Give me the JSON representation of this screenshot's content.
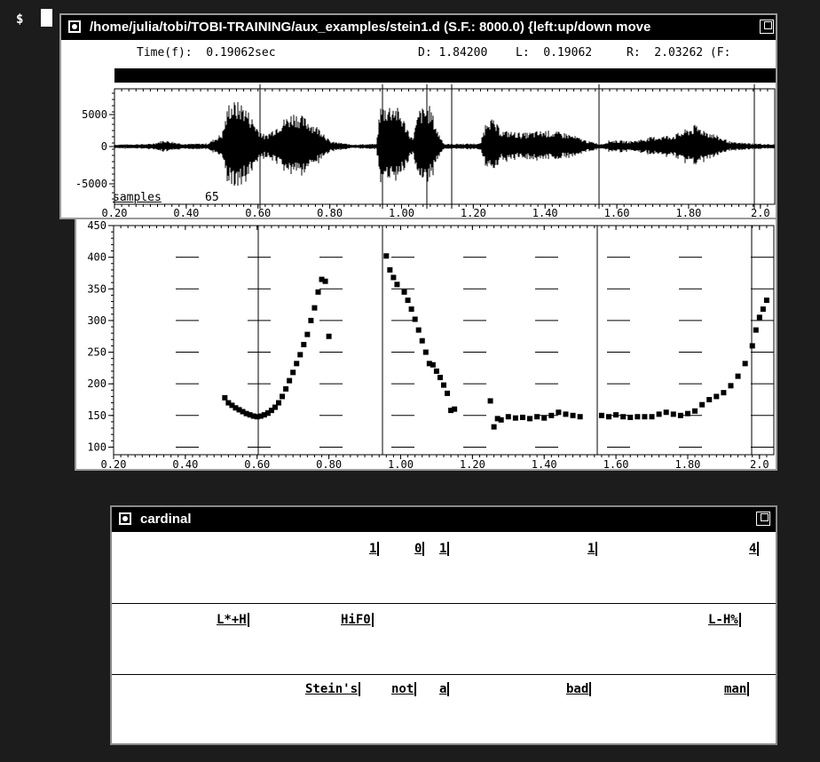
{
  "terminal": {
    "prompt": "$"
  },
  "waveform_window": {
    "title": "/home/julia/tobi/TOBI-TRAINING/aux_examples/stein1.d (S.F.: 8000.0) {left:up/down move",
    "readout": {
      "time": "Time(f):  0.19062sec",
      "d": "D: 1.84200",
      "l": "L:  0.19062",
      "r": "R:  2.03262 (F:"
    },
    "y_ticks": [
      "5000",
      "0",
      "-5000"
    ],
    "corner_label": "samples",
    "corner_value": "65",
    "x_ticks": [
      "0.20",
      "0.40",
      "0.60",
      "0.80",
      "1.00",
      "1.20",
      "1.40",
      "1.60",
      "1.80",
      "2.0"
    ]
  },
  "pitch_panel": {
    "y_ticks": [
      "450",
      "400",
      "350",
      "300",
      "250",
      "200",
      "150",
      "100"
    ],
    "x_ticks": [
      "0.20",
      "0.40",
      "0.60",
      "0.80",
      "1.00",
      "1.20",
      "1.40",
      "1.60",
      "1.80",
      "2.0"
    ]
  },
  "label_window": {
    "title": "cardinal",
    "tiers": [
      {
        "name": "break-indices",
        "labels": [
          "1",
          "0",
          "1",
          "1",
          "4"
        ]
      },
      {
        "name": "tones",
        "labels": [
          "L*+H",
          "HiF0",
          "L-H%"
        ]
      },
      {
        "name": "words",
        "labels": [
          "Stein's",
          "not",
          "a",
          "bad",
          "man"
        ]
      }
    ]
  },
  "chart_data": {
    "type": "scatter",
    "xlim": [
      0.2,
      2.04
    ],
    "ylim": [
      88,
      450
    ],
    "points": [
      [
        0.51,
        178
      ],
      [
        0.52,
        170
      ],
      [
        0.53,
        166
      ],
      [
        0.54,
        162
      ],
      [
        0.55,
        159
      ],
      [
        0.56,
        156
      ],
      [
        0.57,
        153
      ],
      [
        0.58,
        151
      ],
      [
        0.59,
        149
      ],
      [
        0.6,
        148
      ],
      [
        0.61,
        149
      ],
      [
        0.62,
        151
      ],
      [
        0.63,
        154
      ],
      [
        0.64,
        158
      ],
      [
        0.65,
        163
      ],
      [
        0.66,
        170
      ],
      [
        0.67,
        180
      ],
      [
        0.68,
        192
      ],
      [
        0.69,
        205
      ],
      [
        0.7,
        218
      ],
      [
        0.71,
        232
      ],
      [
        0.72,
        246
      ],
      [
        0.73,
        262
      ],
      [
        0.74,
        278
      ],
      [
        0.75,
        300
      ],
      [
        0.76,
        320
      ],
      [
        0.77,
        345
      ],
      [
        0.78,
        365
      ],
      [
        0.79,
        362
      ],
      [
        0.8,
        275
      ],
      [
        0.96,
        402
      ],
      [
        0.97,
        380
      ],
      [
        0.98,
        368
      ],
      [
        0.99,
        357
      ],
      [
        1.01,
        345
      ],
      [
        1.02,
        332
      ],
      [
        1.03,
        318
      ],
      [
        1.04,
        302
      ],
      [
        1.05,
        285
      ],
      [
        1.06,
        268
      ],
      [
        1.07,
        250
      ],
      [
        1.08,
        232
      ],
      [
        1.09,
        230
      ],
      [
        1.1,
        220
      ],
      [
        1.11,
        210
      ],
      [
        1.12,
        198
      ],
      [
        1.13,
        185
      ],
      [
        1.14,
        158
      ],
      [
        1.15,
        160
      ],
      [
        1.25,
        173
      ],
      [
        1.26,
        132
      ],
      [
        1.27,
        145
      ],
      [
        1.28,
        143
      ],
      [
        1.3,
        148
      ],
      [
        1.32,
        146
      ],
      [
        1.34,
        147
      ],
      [
        1.36,
        145
      ],
      [
        1.38,
        148
      ],
      [
        1.4,
        146
      ],
      [
        1.42,
        150
      ],
      [
        1.44,
        155
      ],
      [
        1.46,
        152
      ],
      [
        1.48,
        150
      ],
      [
        1.5,
        148
      ],
      [
        1.56,
        150
      ],
      [
        1.58,
        148
      ],
      [
        1.6,
        151
      ],
      [
        1.62,
        148
      ],
      [
        1.64,
        147
      ],
      [
        1.66,
        148
      ],
      [
        1.68,
        148
      ],
      [
        1.7,
        148
      ],
      [
        1.72,
        152
      ],
      [
        1.74,
        155
      ],
      [
        1.76,
        152
      ],
      [
        1.78,
        150
      ],
      [
        1.8,
        153
      ],
      [
        1.82,
        157
      ],
      [
        1.84,
        167
      ],
      [
        1.86,
        175
      ],
      [
        1.88,
        180
      ],
      [
        1.9,
        186
      ],
      [
        1.92,
        197
      ],
      [
        1.94,
        212
      ],
      [
        1.96,
        232
      ],
      [
        1.98,
        260
      ],
      [
        1.99,
        285
      ],
      [
        2.0,
        305
      ],
      [
        2.01,
        318
      ],
      [
        2.02,
        332
      ]
    ]
  }
}
